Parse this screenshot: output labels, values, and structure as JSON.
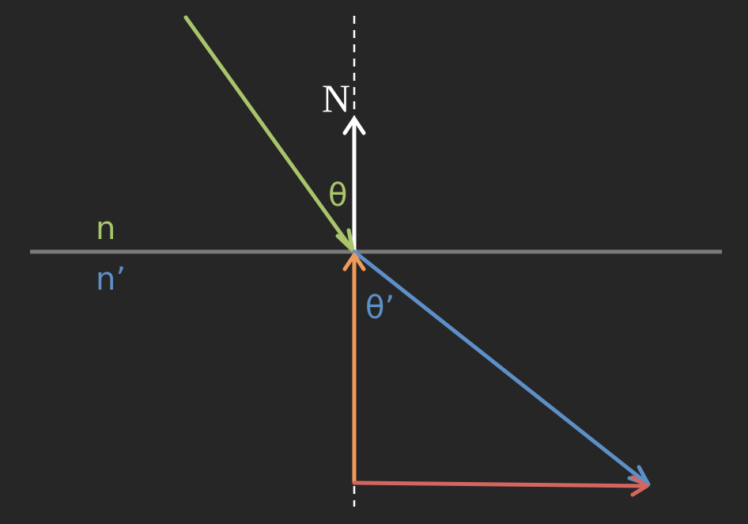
{
  "background": "#262626",
  "labels": {
    "normal": "N",
    "incident_angle": "θ",
    "refracted_angle": "θ’",
    "upper_index": "n",
    "lower_index": "n’"
  },
  "colors": {
    "interface": "#7a7a7a",
    "normal": "#ffffff",
    "incident": "#a9c46a",
    "refracted": "#5d8fc8",
    "vertical_component": "#f09a5a",
    "horizontal_component": "#d4665f",
    "dashed_normal": "#ffffff"
  }
}
